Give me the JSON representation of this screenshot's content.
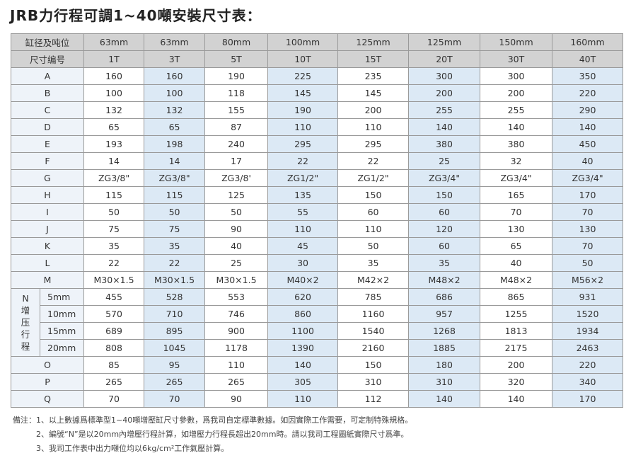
{
  "title": "JRB力行程可調1~40噸安裝尺寸表：",
  "table": {
    "header": [
      "缸径及吨位",
      "63mm",
      "63mm",
      "80mm",
      "100mm",
      "125mm",
      "125mm",
      "150mm",
      "160mm"
    ],
    "subheader": [
      "尺寸编号",
      "1T",
      "3T",
      "5T",
      "10T",
      "15T",
      "20T",
      "30T",
      "40T"
    ],
    "rows_top": [
      {
        "label": "A",
        "cells": [
          "160",
          "160",
          "190",
          "225",
          "235",
          "300",
          "300",
          "350"
        ]
      },
      {
        "label": "B",
        "cells": [
          "100",
          "100",
          "118",
          "145",
          "145",
          "200",
          "200",
          "220"
        ]
      },
      {
        "label": "C",
        "cells": [
          "132",
          "132",
          "155",
          "190",
          "200",
          "255",
          "255",
          "290"
        ]
      },
      {
        "label": "D",
        "cells": [
          "65",
          "65",
          "87",
          "110",
          "110",
          "140",
          "140",
          "140"
        ]
      },
      {
        "label": "E",
        "cells": [
          "193",
          "198",
          "240",
          "295",
          "295",
          "380",
          "380",
          "450"
        ]
      },
      {
        "label": "F",
        "cells": [
          "14",
          "14",
          "17",
          "22",
          "22",
          "25",
          "32",
          "40"
        ]
      },
      {
        "label": "G",
        "cells": [
          "ZG3/8\"",
          "ZG3/8\"",
          "ZG3/8'",
          "ZG1/2\"",
          "ZG1/2\"",
          "ZG3/4\"",
          "ZG3/4\"",
          "ZG3/4\""
        ]
      },
      {
        "label": "H",
        "cells": [
          "115",
          "115",
          "125",
          "135",
          "150",
          "150",
          "165",
          "170"
        ]
      },
      {
        "label": "I",
        "cells": [
          "50",
          "50",
          "50",
          "55",
          "60",
          "60",
          "70",
          "70"
        ]
      },
      {
        "label": "J",
        "cells": [
          "75",
          "75",
          "90",
          "110",
          "110",
          "120",
          "130",
          "130"
        ]
      },
      {
        "label": "K",
        "cells": [
          "35",
          "35",
          "40",
          "45",
          "50",
          "60",
          "65",
          "70"
        ]
      },
      {
        "label": "L",
        "cells": [
          "22",
          "22",
          "25",
          "30",
          "35",
          "35",
          "40",
          "50"
        ]
      },
      {
        "label": "M",
        "cells": [
          "M30×1.5",
          "M30×1.5",
          "M30×1.5",
          "M40×2",
          "M42×2",
          "M48×2",
          "M48×2",
          "M56×2"
        ]
      }
    ],
    "group": {
      "label": "N增压行程",
      "rows": [
        {
          "label": "5mm",
          "cells": [
            "455",
            "528",
            "553",
            "620",
            "785",
            "686",
            "865",
            "931"
          ]
        },
        {
          "label": "10mm",
          "cells": [
            "570",
            "710",
            "746",
            "860",
            "1160",
            "957",
            "1255",
            "1520"
          ]
        },
        {
          "label": "15mm",
          "cells": [
            "689",
            "895",
            "900",
            "1100",
            "1540",
            "1268",
            "1813",
            "1934"
          ]
        },
        {
          "label": "20mm",
          "cells": [
            "808",
            "1045",
            "1178",
            "1390",
            "2160",
            "1885",
            "2175",
            "2463"
          ]
        }
      ]
    },
    "rows_bottom": [
      {
        "label": "O",
        "cells": [
          "85",
          "95",
          "110",
          "140",
          "150",
          "180",
          "200",
          "220"
        ]
      },
      {
        "label": "P",
        "cells": [
          "265",
          "265",
          "265",
          "305",
          "310",
          "310",
          "320",
          "340"
        ]
      },
      {
        "label": "Q",
        "cells": [
          "70",
          "70",
          "90",
          "110",
          "112",
          "140",
          "140",
          "170"
        ]
      }
    ]
  },
  "notes": {
    "prefix": "備注：",
    "items": [
      "1、以上數據爲標準型1~40噸增壓缸尺寸參數，爲我司自定標準數據。如因實際工作需要，可定制特殊規格。",
      "2、編號“N”是以20mm內增壓行程計算，如增壓力行程長超出20mm時。請以我司工程圖紙實際尺寸爲準。",
      "3、我司工作表中出力噸位均以6kg/cm²工作氣壓計算。"
    ]
  }
}
